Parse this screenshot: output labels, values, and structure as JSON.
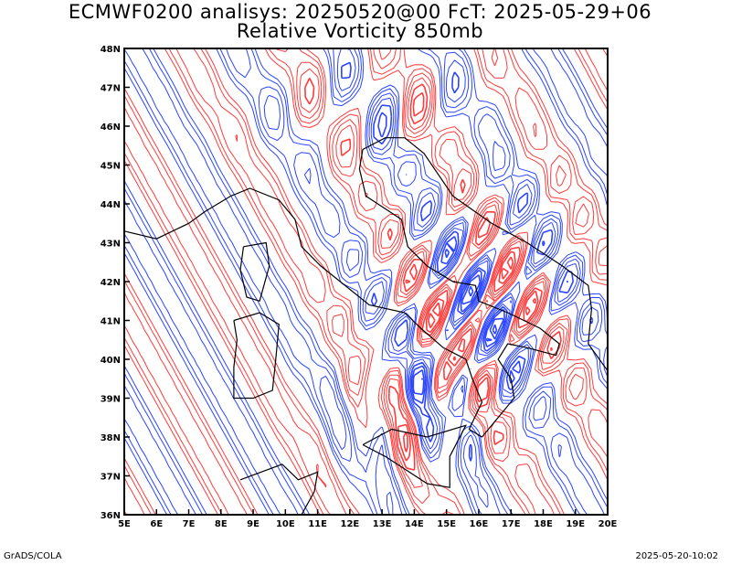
{
  "title": {
    "line1": "ECMWF0200 analisys: 20250520@00 FcT: 2025-05-29+06",
    "line2": "Relative Vorticity 850mb"
  },
  "footer": {
    "left": "GrADS/COLA",
    "right": "2025-05-20-10:02"
  },
  "map": {
    "lon_range": [
      5,
      20
    ],
    "lat_range": [
      36,
      48
    ],
    "lon_ticks": [
      "5E",
      "6E",
      "7E",
      "8E",
      "9E",
      "10E",
      "11E",
      "12E",
      "13E",
      "14E",
      "15E",
      "16E",
      "17E",
      "18E",
      "19E",
      "20E"
    ],
    "lat_ticks": [
      "36N",
      "37N",
      "38N",
      "39N",
      "40N",
      "41N",
      "42N",
      "43N",
      "44N",
      "45N",
      "46N",
      "47N",
      "48N"
    ],
    "colors": {
      "positive": "#ff3b3b",
      "negative": "#2b45ff",
      "coastline": "#000000",
      "background": "#ffffff"
    }
  }
}
